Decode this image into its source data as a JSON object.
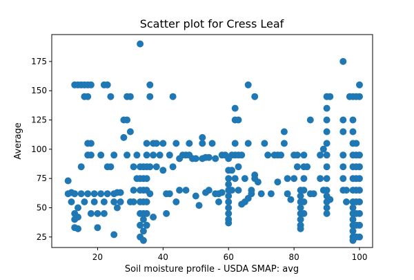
{
  "chart_data": {
    "type": "scatter",
    "title": "Scatter plot for Cress Leaf",
    "xlabel": "Soil moisture profile - USDA SMAP: avg",
    "ylabel": "Average",
    "xlim": [
      6,
      104
    ],
    "ylim": [
      16,
      198
    ],
    "xticks": [
      20,
      40,
      60,
      80,
      100
    ],
    "yticks": [
      25,
      50,
      75,
      100,
      125,
      150,
      175
    ],
    "grid": false,
    "legend": "none",
    "marker_color": "#1f77b4",
    "series": [
      {
        "points": [
          [
            11,
            73
          ],
          [
            11,
            62
          ],
          [
            12,
            63
          ],
          [
            12,
            55
          ],
          [
            13,
            45
          ],
          [
            13,
            40
          ],
          [
            13,
            33
          ],
          [
            14,
            32
          ],
          [
            14,
            42
          ],
          [
            14,
            50
          ],
          [
            13,
            155
          ],
          [
            14,
            155
          ],
          [
            15,
            155
          ],
          [
            16,
            155
          ],
          [
            17,
            155
          ],
          [
            18,
            155
          ],
          [
            16,
            145
          ],
          [
            17,
            145
          ],
          [
            15,
            85
          ],
          [
            17,
            105
          ],
          [
            18,
            105
          ],
          [
            17,
            95
          ],
          [
            18,
            95
          ],
          [
            13,
            62
          ],
          [
            15,
            62
          ],
          [
            17,
            62
          ],
          [
            19,
            62
          ],
          [
            21,
            62
          ],
          [
            23,
            62
          ],
          [
            25,
            62
          ],
          [
            16,
            55
          ],
          [
            19,
            55
          ],
          [
            22,
            55
          ],
          [
            25,
            55
          ],
          [
            18,
            45
          ],
          [
            20,
            45
          ],
          [
            22,
            45
          ],
          [
            20,
            33
          ],
          [
            22,
            155
          ],
          [
            23,
            155
          ],
          [
            24,
            145
          ],
          [
            21,
            95
          ],
          [
            23,
            85
          ],
          [
            24,
            85
          ],
          [
            25,
            95
          ],
          [
            25,
            27
          ],
          [
            26,
            63
          ],
          [
            26,
            50
          ],
          [
            27,
            55
          ],
          [
            27,
            63
          ],
          [
            28,
            110
          ],
          [
            28,
            125
          ],
          [
            29,
            125
          ],
          [
            29,
            145
          ],
          [
            30,
            145
          ],
          [
            29,
            95
          ],
          [
            30,
            115
          ],
          [
            30,
            55
          ],
          [
            31,
            55
          ],
          [
            31,
            65
          ],
          [
            31,
            85
          ],
          [
            32,
            95
          ],
          [
            32,
            75
          ],
          [
            33,
            190
          ],
          [
            33,
            85
          ],
          [
            33,
            75
          ],
          [
            33,
            65
          ],
          [
            33,
            55
          ],
          [
            33,
            45
          ],
          [
            33,
            35
          ],
          [
            33,
            25
          ],
          [
            34,
            85
          ],
          [
            34,
            75
          ],
          [
            34,
            65
          ],
          [
            34,
            55
          ],
          [
            34,
            45
          ],
          [
            34,
            40
          ],
          [
            34,
            30
          ],
          [
            34,
            22
          ],
          [
            35,
            105
          ],
          [
            35,
            95
          ],
          [
            35,
            85
          ],
          [
            35,
            75
          ],
          [
            35,
            65
          ],
          [
            35,
            55
          ],
          [
            35,
            45
          ],
          [
            35,
            35
          ],
          [
            36,
            155
          ],
          [
            36,
            145
          ],
          [
            36,
            85
          ],
          [
            36,
            62
          ],
          [
            37,
            105
          ],
          [
            37,
            95
          ],
          [
            37,
            42
          ],
          [
            38,
            105
          ],
          [
            38,
            85
          ],
          [
            39,
            95
          ],
          [
            40,
            82
          ],
          [
            40,
            105
          ],
          [
            41,
            45
          ],
          [
            41,
            62
          ],
          [
            42,
            95
          ],
          [
            42,
            62
          ],
          [
            43,
            145
          ],
          [
            43,
            85
          ],
          [
            44,
            105
          ],
          [
            44,
            55
          ],
          [
            45,
            92
          ],
          [
            45,
            65
          ],
          [
            46,
            95
          ],
          [
            47,
            95
          ],
          [
            47,
            65
          ],
          [
            48,
            95
          ],
          [
            48,
            105
          ],
          [
            49,
            92
          ],
          [
            50,
            92
          ],
          [
            50,
            60
          ],
          [
            51,
            52
          ],
          [
            52,
            92
          ],
          [
            52,
            105
          ],
          [
            52,
            110
          ],
          [
            53,
            93
          ],
          [
            53,
            63
          ],
          [
            54,
            93
          ],
          [
            54,
            65
          ],
          [
            55,
            105
          ],
          [
            56,
            92
          ],
          [
            56,
            62
          ],
          [
            57,
            55
          ],
          [
            57,
            62
          ],
          [
            58,
            95
          ],
          [
            58,
            63
          ],
          [
            59,
            95
          ],
          [
            60,
            92
          ],
          [
            60,
            82
          ],
          [
            60,
            75
          ],
          [
            60,
            70
          ],
          [
            60,
            65
          ],
          [
            60,
            60
          ],
          [
            60,
            55
          ],
          [
            60,
            50
          ],
          [
            60,
            45
          ],
          [
            60,
            40
          ],
          [
            60,
            37
          ],
          [
            61,
            95
          ],
          [
            61,
            82
          ],
          [
            61,
            65
          ],
          [
            62,
            135
          ],
          [
            62,
            125
          ],
          [
            62,
            105
          ],
          [
            62,
            95
          ],
          [
            62,
            75
          ],
          [
            63,
            125
          ],
          [
            63,
            95
          ],
          [
            63,
            85
          ],
          [
            63,
            65
          ],
          [
            64,
            53
          ],
          [
            64,
            95
          ],
          [
            65,
            55
          ],
          [
            65,
            75
          ],
          [
            66,
            155
          ],
          [
            66,
            105
          ],
          [
            66,
            58
          ],
          [
            67,
            62
          ],
          [
            67,
            65
          ],
          [
            68,
            145
          ],
          [
            68,
            78
          ],
          [
            68,
            75
          ],
          [
            69,
            72
          ],
          [
            70,
            62
          ],
          [
            71,
            105
          ],
          [
            72,
            95
          ],
          [
            73,
            62
          ],
          [
            74,
            95
          ],
          [
            75,
            95
          ],
          [
            75,
            72
          ],
          [
            76,
            95
          ],
          [
            77,
            105
          ],
          [
            77,
            115
          ],
          [
            78,
            75
          ],
          [
            78,
            62
          ],
          [
            79,
            57
          ],
          [
            80,
            95
          ],
          [
            80,
            75
          ],
          [
            81,
            85
          ],
          [
            81,
            95
          ],
          [
            82,
            65
          ],
          [
            82,
            60
          ],
          [
            82,
            55
          ],
          [
            82,
            50
          ],
          [
            82,
            45
          ],
          [
            82,
            40
          ],
          [
            82,
            35
          ],
          [
            82,
            32
          ],
          [
            83,
            95
          ],
          [
            83,
            85
          ],
          [
            83,
            75
          ],
          [
            83,
            65
          ],
          [
            83,
            55
          ],
          [
            83,
            45
          ],
          [
            84,
            85
          ],
          [
            85,
            125
          ],
          [
            85,
            62
          ],
          [
            86,
            62
          ],
          [
            88,
            95
          ],
          [
            88,
            75
          ],
          [
            89,
            100
          ],
          [
            89,
            65
          ],
          [
            90,
            145
          ],
          [
            90,
            135
          ],
          [
            90,
            125
          ],
          [
            90,
            115
          ],
          [
            90,
            105
          ],
          [
            90,
            95
          ],
          [
            90,
            85
          ],
          [
            90,
            75
          ],
          [
            90,
            65
          ],
          [
            90,
            60
          ],
          [
            90,
            55
          ],
          [
            90,
            50
          ],
          [
            90,
            45
          ],
          [
            91,
            145
          ],
          [
            91,
            57
          ],
          [
            95,
            175
          ],
          [
            95,
            125
          ],
          [
            95,
            115
          ],
          [
            95,
            95
          ],
          [
            95,
            85
          ],
          [
            95,
            75
          ],
          [
            95,
            65
          ],
          [
            96,
            65
          ],
          [
            96,
            55
          ],
          [
            97,
            145
          ],
          [
            98,
            145
          ],
          [
            98,
            125
          ],
          [
            98,
            115
          ],
          [
            98,
            105
          ],
          [
            98,
            95
          ],
          [
            98,
            85
          ],
          [
            98,
            75
          ],
          [
            98,
            65
          ],
          [
            98,
            55
          ],
          [
            98,
            50
          ],
          [
            98,
            45
          ],
          [
            98,
            40
          ],
          [
            98,
            35
          ],
          [
            98,
            30
          ],
          [
            98,
            25
          ],
          [
            98,
            22
          ],
          [
            99,
            145
          ],
          [
            99,
            105
          ],
          [
            99,
            95
          ],
          [
            99,
            85
          ],
          [
            99,
            75
          ],
          [
            99,
            65
          ],
          [
            99,
            55
          ],
          [
            99,
            45
          ],
          [
            99,
            35
          ],
          [
            99,
            25
          ],
          [
            100,
            155
          ],
          [
            100,
            145
          ],
          [
            100,
            95
          ],
          [
            100,
            85
          ],
          [
            100,
            75
          ],
          [
            100,
            65
          ],
          [
            100,
            55
          ],
          [
            100,
            45
          ],
          [
            100,
            35
          ],
          [
            100,
            25
          ]
        ]
      }
    ]
  }
}
